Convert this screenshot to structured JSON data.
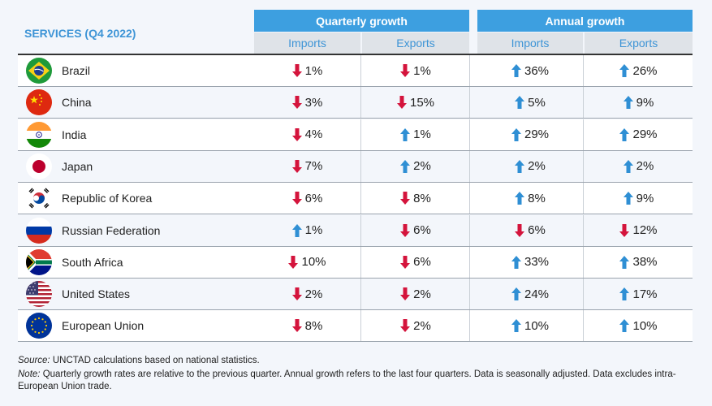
{
  "title": "SERVICES (Q4 2022)",
  "groups": {
    "quarterly": "Quarterly growth",
    "annual": "Annual growth"
  },
  "subheaders": {
    "imports": "Imports",
    "exports": "Exports"
  },
  "colors": {
    "up": "#2f8fd4",
    "down": "#d4143c",
    "header": "#3d9fe0",
    "title": "#3d94d6"
  },
  "chart_data": {
    "type": "table",
    "title": "SERVICES (Q4 2022)",
    "columns": [
      "Quarterly growth Imports",
      "Quarterly growth Exports",
      "Annual growth Imports",
      "Annual growth Exports"
    ],
    "rows": [
      {
        "country": "Brazil",
        "flag": "brazil-flag-icon",
        "values": [
          {
            "dir": "down",
            "text": "1%"
          },
          {
            "dir": "down",
            "text": "1%"
          },
          {
            "dir": "up",
            "text": "36%"
          },
          {
            "dir": "up",
            "text": "26%"
          }
        ]
      },
      {
        "country": "China",
        "flag": "china-flag-icon",
        "values": [
          {
            "dir": "down",
            "text": "3%"
          },
          {
            "dir": "down",
            "text": "15%"
          },
          {
            "dir": "up",
            "text": "5%"
          },
          {
            "dir": "up",
            "text": "9%"
          }
        ]
      },
      {
        "country": "India",
        "flag": "india-flag-icon",
        "values": [
          {
            "dir": "down",
            "text": "4%"
          },
          {
            "dir": "up",
            "text": "1%"
          },
          {
            "dir": "up",
            "text": "29%"
          },
          {
            "dir": "up",
            "text": "29%"
          }
        ]
      },
      {
        "country": "Japan",
        "flag": "japan-flag-icon",
        "values": [
          {
            "dir": "down",
            "text": "7%"
          },
          {
            "dir": "up",
            "text": "2%"
          },
          {
            "dir": "up",
            "text": "2%"
          },
          {
            "dir": "up",
            "text": "2%"
          }
        ]
      },
      {
        "country": "Republic of Korea",
        "flag": "korea-flag-icon",
        "values": [
          {
            "dir": "down",
            "text": "6%"
          },
          {
            "dir": "down",
            "text": "8%"
          },
          {
            "dir": "up",
            "text": "8%"
          },
          {
            "dir": "up",
            "text": "9%"
          }
        ]
      },
      {
        "country": "Russian Federation",
        "flag": "russia-flag-icon",
        "values": [
          {
            "dir": "up",
            "text": "1%"
          },
          {
            "dir": "down",
            "text": "6%"
          },
          {
            "dir": "down",
            "text": "6%"
          },
          {
            "dir": "down",
            "text": "12%"
          }
        ]
      },
      {
        "country": "South Africa",
        "flag": "south-africa-flag-icon",
        "values": [
          {
            "dir": "down",
            "text": "10%"
          },
          {
            "dir": "down",
            "text": "6%"
          },
          {
            "dir": "up",
            "text": "33%"
          },
          {
            "dir": "up",
            "text": "38%"
          }
        ]
      },
      {
        "country": "United States",
        "flag": "usa-flag-icon",
        "values": [
          {
            "dir": "down",
            "text": "2%"
          },
          {
            "dir": "down",
            "text": "2%"
          },
          {
            "dir": "up",
            "text": "24%"
          },
          {
            "dir": "up",
            "text": "17%"
          }
        ]
      },
      {
        "country": "European Union",
        "flag": "eu-flag-icon",
        "values": [
          {
            "dir": "down",
            "text": "8%"
          },
          {
            "dir": "down",
            "text": "2%"
          },
          {
            "dir": "up",
            "text": "10%"
          },
          {
            "dir": "up",
            "text": "10%"
          }
        ]
      }
    ]
  },
  "footnotes": {
    "source_label": "Source:",
    "source_text": " UNCTAD calculations based on national statistics.",
    "note_label": "Note:",
    "note_text_1": " Quarterly growth rates are relative to the previous quarter. Annual growth refers to the last four quarters. Data is seasonally adjusted. Data excludes intra-",
    "note_text_2": "European Union trade."
  }
}
